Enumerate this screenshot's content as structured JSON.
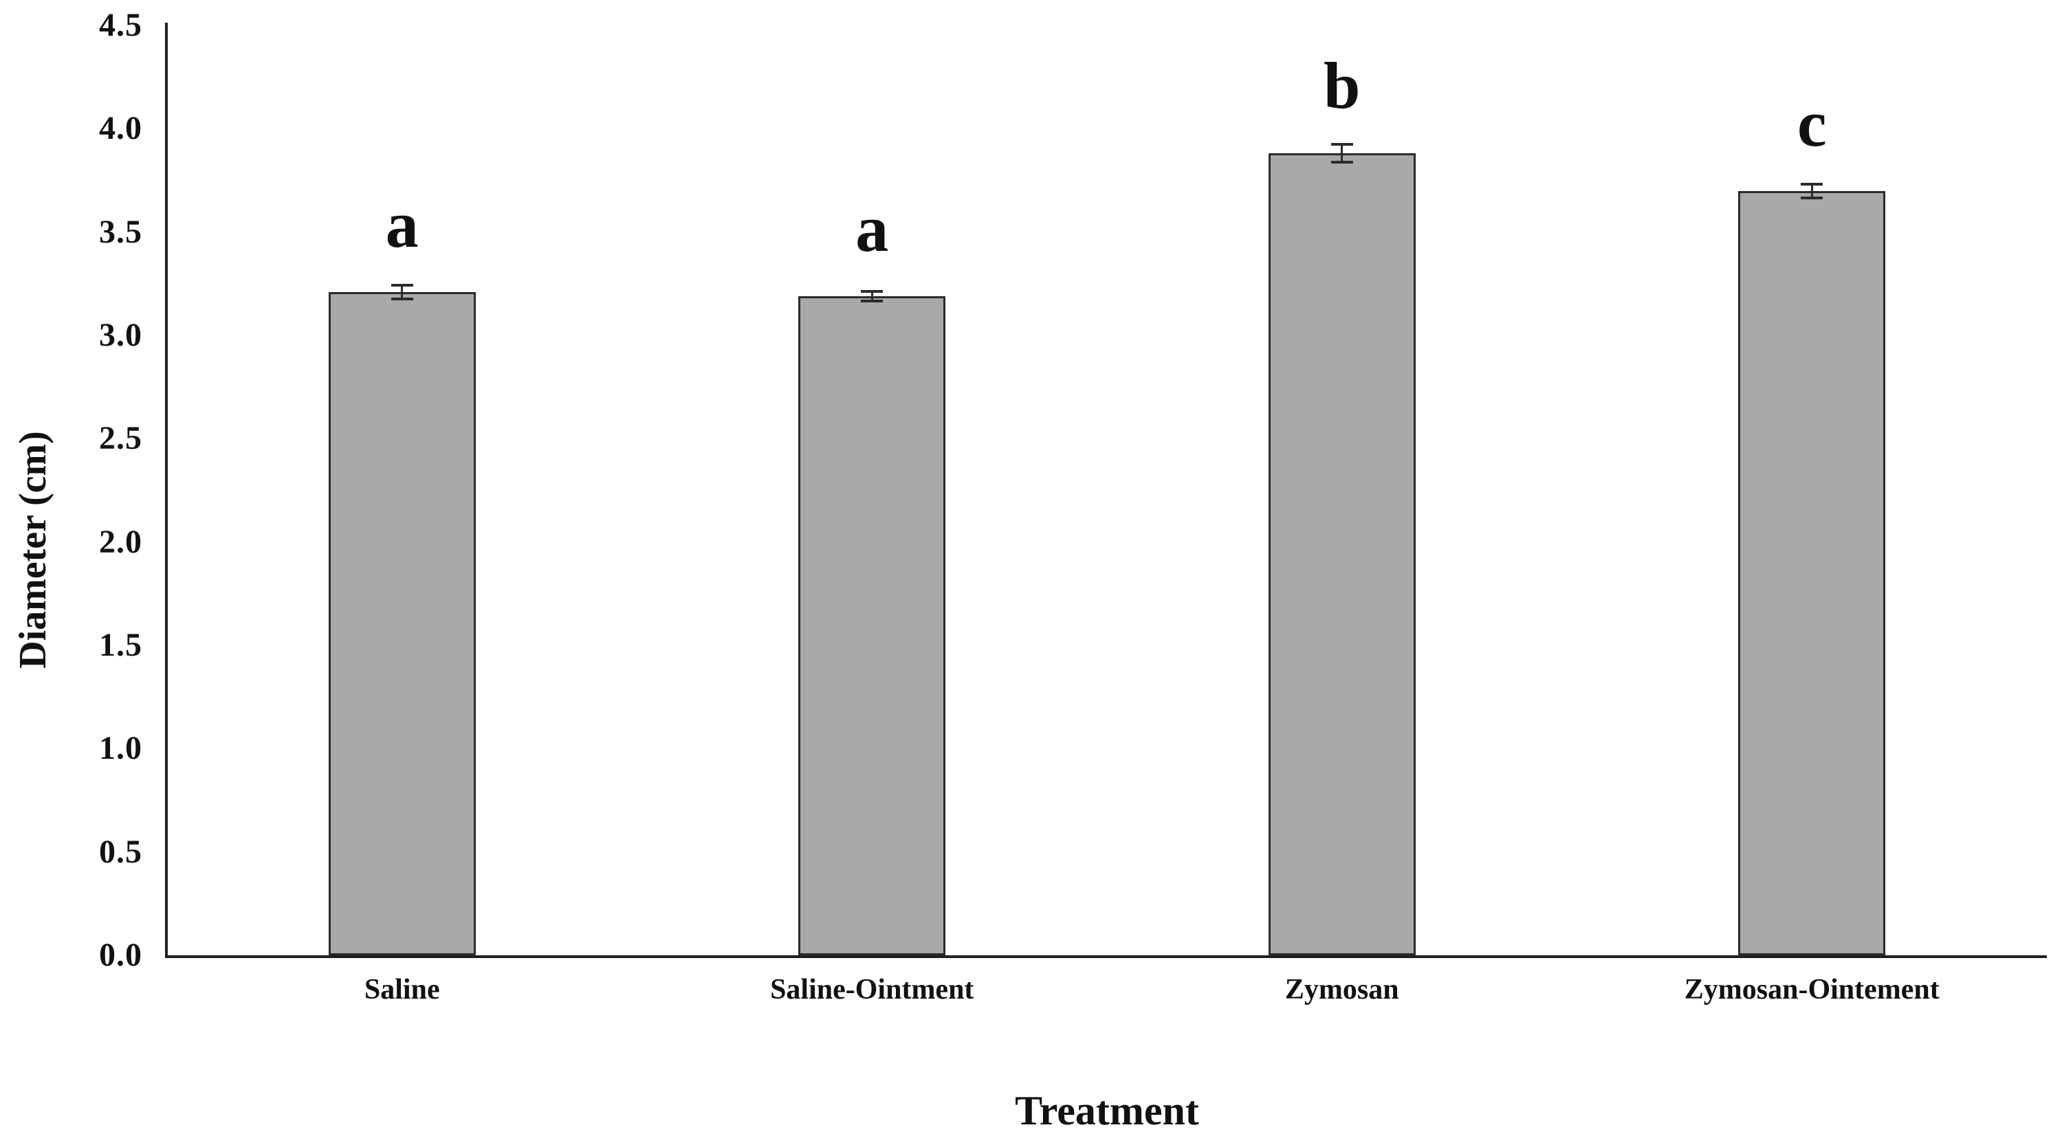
{
  "chart_data": {
    "type": "bar",
    "title": "",
    "xlabel": "Treatment",
    "ylabel": "Diameter (cm)",
    "categories": [
      "Saline",
      "Saline-Ointment",
      "Zymosan",
      "Zymosan-Ointement"
    ],
    "values": [
      3.21,
      3.19,
      3.88,
      3.7
    ],
    "errors": [
      0.03,
      0.02,
      0.04,
      0.03
    ],
    "sig_letters": [
      "a",
      "a",
      "b",
      "c"
    ],
    "ylim": [
      0,
      4.5
    ],
    "ytick_step": 0.5,
    "yticks": [
      "0.0",
      "0.5",
      "1.0",
      "1.5",
      "2.0",
      "2.5",
      "3.0",
      "3.5",
      "4.0",
      "4.5"
    ],
    "grid": false,
    "legend": null,
    "bar_color": "#a9a9a9",
    "bar_border_color": "#2b2b2b",
    "axis_color": "#1f1f1f",
    "text_color": "#111111",
    "background_color": "#ffffff"
  }
}
